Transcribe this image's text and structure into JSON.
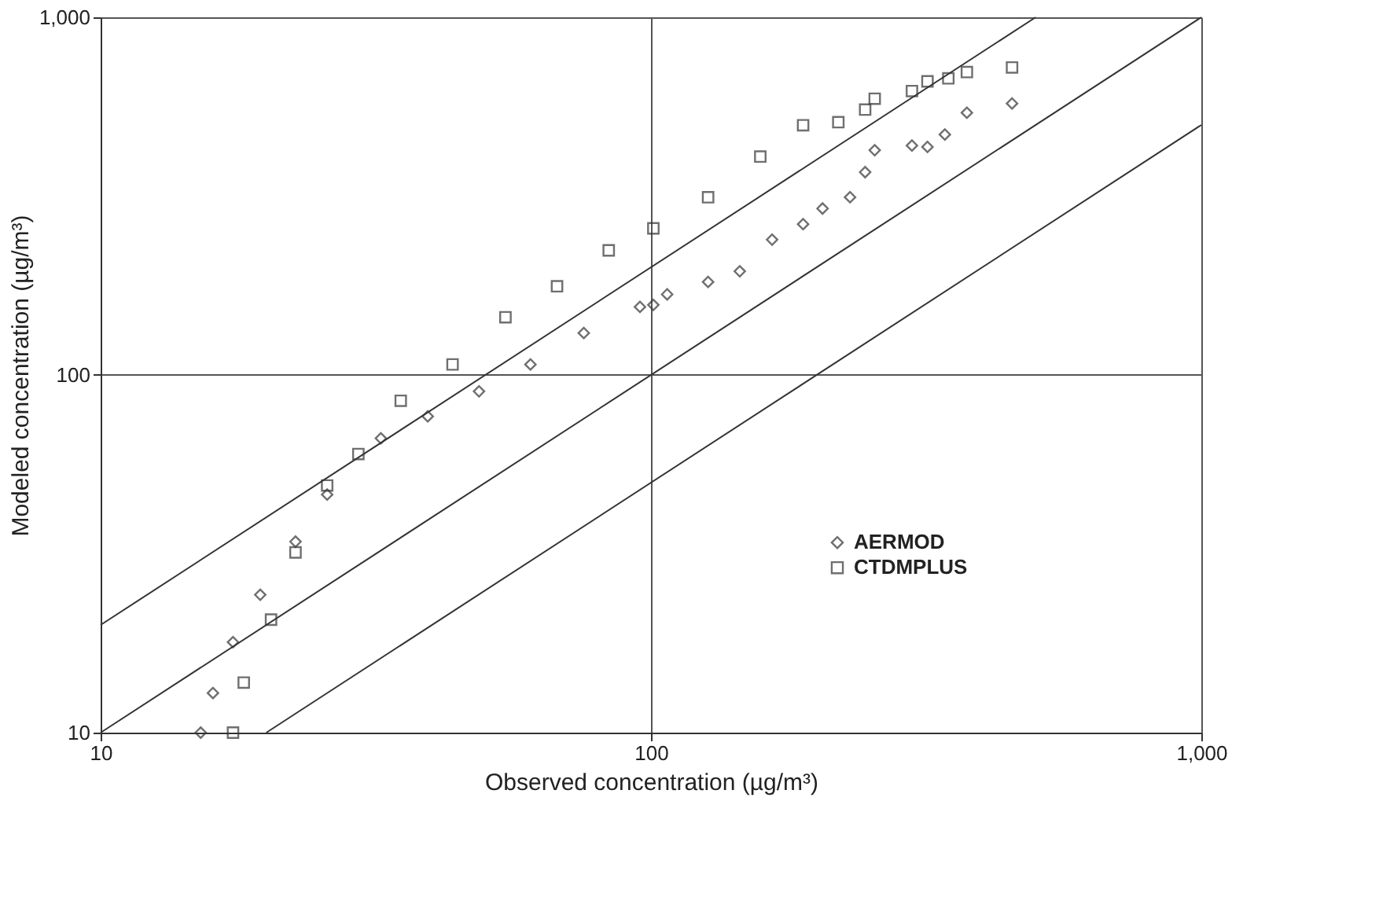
{
  "chart_data": {
    "type": "scatter",
    "xlabel": "Observed concentration (µg/m³)",
    "ylabel": "Modeled concentration (µg/m³)",
    "log": "xy",
    "grid": true,
    "legend": "right",
    "xlim": [
      10,
      1000
    ],
    "ylim": [
      10,
      1000
    ],
    "xticks": [
      10,
      100,
      {
        "value": 1000,
        "label": "1,000"
      }
    ],
    "yticks": [
      10,
      100,
      {
        "value": 1000,
        "label": "1,000"
      }
    ],
    "series": [
      {
        "name": "AERMOD",
        "marker": "diamond",
        "color": "#333333",
        "x": [
          15.2,
          16.0,
          17.4,
          19.5,
          22.6,
          25.8,
          32.3,
          39.3,
          48.7,
          60.4,
          75.5,
          95.5,
          101,
          107,
          127,
          145,
          166,
          189,
          205,
          230,
          245,
          255,
          298,
          318,
          342,
          375,
          453
        ],
        "values": [
          10,
          12.9,
          17.9,
          24.3,
          34.2,
          46.3,
          66.5,
          76.6,
          90,
          107,
          131,
          155,
          157,
          168,
          182,
          195,
          239,
          264,
          292,
          314,
          369,
          425,
          438,
          434,
          470,
          541,
          574
        ]
      },
      {
        "name": "CTDMPLUS",
        "marker": "square",
        "color": "#333333",
        "x": [
          17.4,
          18.2,
          20.4,
          22.6,
          25.8,
          29.4,
          35.1,
          43.6,
          54.4,
          67.5,
          83.8,
          101,
          127,
          158,
          189,
          219,
          245,
          255,
          298,
          318,
          347,
          375,
          453
        ],
        "values": [
          10,
          13.8,
          20.7,
          31.9,
          49.1,
          60.1,
          84.7,
          107,
          145,
          177,
          223,
          257,
          314,
          408,
          499,
          509,
          552,
          592,
          622,
          662,
          675,
          703,
          724
        ]
      },
      {
        "type": "line",
        "color": "#333333",
        "marker": "none",
        "line_style": "solid",
        "x": [
          10,
          500
        ],
        "values": [
          20,
          1000
        ]
      },
      {
        "type": "line",
        "color": "#333333",
        "marker": "none",
        "line_style": "solid",
        "x": [
          10,
          1000
        ],
        "values": [
          10,
          1000
        ]
      },
      {
        "type": "line",
        "color": "#333333",
        "marker": "none",
        "line_style": "solid",
        "x": [
          20,
          1000
        ],
        "values": [
          10,
          500
        ]
      }
    ]
  }
}
